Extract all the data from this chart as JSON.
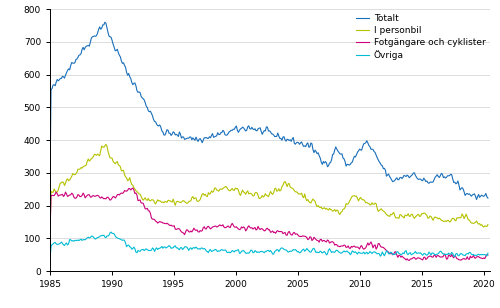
{
  "title": "",
  "xlabel": "",
  "ylabel": "",
  "xlim": [
    1985.0,
    2020.5
  ],
  "ylim": [
    0,
    800
  ],
  "yticks": [
    0,
    100,
    200,
    300,
    400,
    500,
    600,
    700,
    800
  ],
  "xticks": [
    1985,
    1990,
    1995,
    2000,
    2005,
    2010,
    2015,
    2020
  ],
  "legend_labels": [
    "Totalt",
    "I personbil",
    "Fotgängare och cyklister",
    "Övriga"
  ],
  "colors": [
    "#1a6fba",
    "#b5c200",
    "#cc007a",
    "#00bcd4"
  ],
  "line_width": 0.8,
  "figsize": [
    5.0,
    3.08
  ],
  "dpi": 100
}
